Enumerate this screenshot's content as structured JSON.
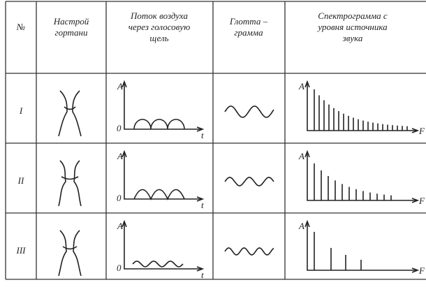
{
  "table": {
    "header": [
      [
        "№"
      ],
      [
        "Настрой",
        "гортани"
      ],
      [
        "Поток воздуха",
        "через голосовую",
        "щель"
      ],
      [
        "Глотта –",
        "грамма"
      ],
      [
        "Спектрограмма с",
        "уровня источника",
        "звука"
      ]
    ],
    "rows": [
      {
        "number": "I",
        "flow_axes": [
          "A",
          "0",
          "t"
        ],
        "spectrum_axes": [
          "A",
          "F"
        ]
      },
      {
        "number": "II",
        "flow_axes": [
          "A",
          "0",
          "t"
        ],
        "spectrum_axes": [
          "A",
          "F"
        ]
      },
      {
        "number": "III",
        "flow_axes": [
          "A",
          "0",
          "t"
        ],
        "spectrum_axes": [
          "A",
          "F"
        ]
      }
    ]
  }
}
